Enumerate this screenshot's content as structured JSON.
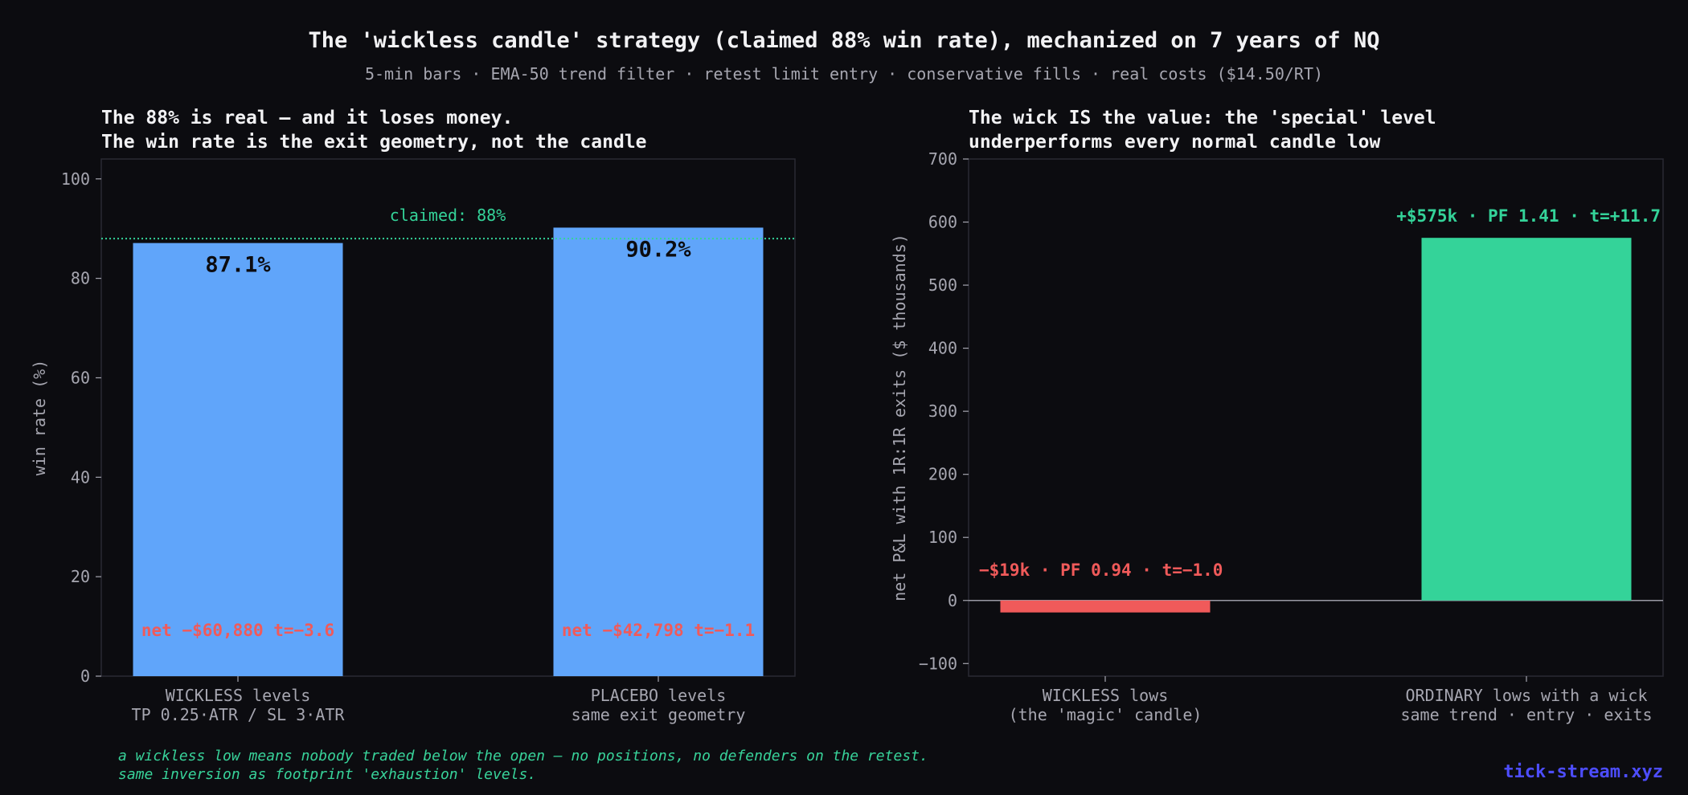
{
  "title": "The 'wickless candle' strategy (claimed 88% win rate), mechanized on 7 years of NQ",
  "subtitle": "5-min bars · EMA-50 trend filter · retest limit entry · conservative fills · real costs ($14.50/RT)",
  "footnote": {
    "line1": "a wickless low means nobody traded below the open — no positions, no defenders on the retest.",
    "line2": "same inversion as footprint 'exhaustion' levels."
  },
  "brand": "tick-stream.xyz",
  "colors": {
    "background": "#0c0c10",
    "bar_blue": "#60a5fa",
    "green": "#34d399",
    "red": "#f05a5a",
    "axis_text": "#a6a6b0"
  },
  "chart_data": [
    {
      "type": "bar",
      "title": "The 88% is real — and it loses money.\nThe win rate is the exit geometry, not the candle",
      "ylabel": "win rate (%)",
      "ylim": [
        0,
        104
      ],
      "yticks": [
        "0",
        "20",
        "40",
        "60",
        "80",
        "100"
      ],
      "categories": [
        {
          "line1": "WICKLESS levels",
          "line2": "TP 0.25·ATR / SL 3·ATR"
        },
        {
          "line1": "PLACEBO levels",
          "line2": "same exit geometry"
        }
      ],
      "values": [
        87.1,
        90.2
      ],
      "value_labels": [
        "87.1%",
        "90.2%"
      ],
      "net_labels": [
        "net  −$60,880   t=−3.6",
        "net  −$42,798   t=−1.1"
      ],
      "reference_line": {
        "value": 88,
        "label": "claimed: 88%"
      }
    },
    {
      "type": "bar",
      "title": "The wick IS the value: the 'special' level\nunderperforms every normal candle low",
      "ylabel": "net P&L with 1R:1R exits ($ thousands)",
      "ylim": [
        -120,
        700
      ],
      "yticks": [
        "−100",
        "0",
        "100",
        "200",
        "300",
        "400",
        "500",
        "600",
        "700"
      ],
      "categories": [
        {
          "line1": "WICKLESS lows",
          "line2": "(the 'magic' candle)"
        },
        {
          "line1": "ORDINARY lows with a wick",
          "line2": "same trend · entry · exits"
        }
      ],
      "values": [
        -19,
        575
      ],
      "value_labels": [
        "−$19k · PF 0.94 · t=−1.0",
        "+$575k · PF 1.41 · t=+11.7"
      ]
    }
  ]
}
